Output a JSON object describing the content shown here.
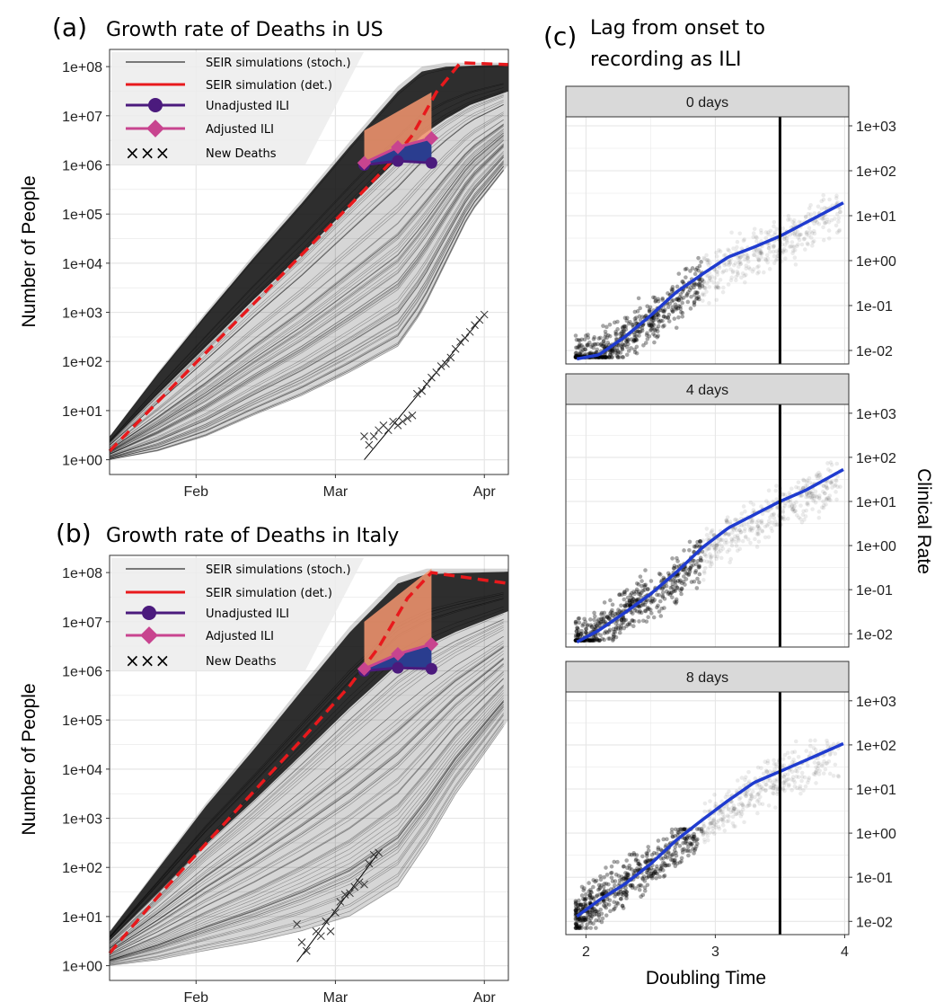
{
  "colors": {
    "det_curve": "#e8191c",
    "stoch_curve": "#000000",
    "unadjusted": "#4b1a7d",
    "adjusted": "#c8448f",
    "orange_fill": "#f4956e",
    "blue_fill": "#2a3d8f",
    "smooth_line": "#1f3bcf",
    "panel_bg": "#ffffff",
    "grid": "#e6e6e6",
    "strip_bg": "#d9d9d9"
  },
  "chart_data": [
    {
      "type": "line",
      "panel_label": "(a)",
      "title": "Growth rate of Deaths in US",
      "xlabel": "",
      "ylabel": "Number of People",
      "y_scale": "log10",
      "ylim": [
        "1e+00",
        "1e+08"
      ],
      "ytick_labels": [
        "1e+00",
        "1e+01",
        "1e+02",
        "1e+03",
        "1e+04",
        "1e+05",
        "1e+06",
        "1e+07",
        "1e+08"
      ],
      "xtick_labels": [
        "Feb",
        "Mar",
        "Apr"
      ],
      "xtick_dates": [
        "2020-02-01",
        "2020-03-01",
        "2020-04-01"
      ],
      "xlim": [
        "2020-01-14",
        "2020-04-06"
      ],
      "legend": {
        "position": "top-left",
        "entries": [
          {
            "label": "SEIR simulations (stoch.)",
            "style": "thin-black-line"
          },
          {
            "label": "SEIR simulation (det.)",
            "style": "red-line"
          },
          {
            "label": "Unadjusted ILI",
            "style": "purple-circle"
          },
          {
            "label": "Adjusted ILI",
            "style": "magenta-diamond"
          },
          {
            "label": "New Deaths",
            "style": "crosses"
          }
        ]
      },
      "series": [
        {
          "name": "SEIR simulation (det.)",
          "x": [
            "2020-01-14",
            "2020-01-24",
            "2020-02-03",
            "2020-02-13",
            "2020-02-23",
            "2020-03-04",
            "2020-03-12",
            "2020-03-17",
            "2020-03-22",
            "2020-03-27",
            "2020-04-06"
          ],
          "y": [
            1.5,
            15,
            150,
            1500,
            15000,
            150000,
            1000000,
            4000000,
            30000000,
            120000000,
            110000000
          ]
        },
        {
          "name": "Unadjusted ILI",
          "x": [
            "2020-03-07",
            "2020-03-14",
            "2020-03-21"
          ],
          "y": [
            1000000,
            1200000,
            1100000
          ]
        },
        {
          "name": "Adjusted ILI",
          "x": [
            "2020-03-07",
            "2020-03-14",
            "2020-03-21"
          ],
          "y": [
            1100000,
            2300000,
            3500000
          ]
        },
        {
          "name": "New Deaths",
          "x": [
            "2020-02-29",
            "2020-03-07",
            "2020-03-08",
            "2020-03-09",
            "2020-03-10",
            "2020-03-11",
            "2020-03-12",
            "2020-03-13",
            "2020-03-14",
            "2020-03-15",
            "2020-03-16",
            "2020-03-17",
            "2020-03-18",
            "2020-03-19",
            "2020-03-20",
            "2020-03-21",
            "2020-03-22",
            "2020-03-23",
            "2020-03-24",
            "2020-03-25",
            "2020-03-26",
            "2020-03-27",
            "2020-03-28",
            "2020-03-29",
            "2020-03-30",
            "2020-03-31",
            "2020-04-01"
          ],
          "y": [
            0.4,
            3,
            2,
            3,
            4,
            5,
            4,
            6,
            5,
            6,
            7,
            8,
            22,
            25,
            35,
            47,
            60,
            80,
            90,
            120,
            180,
            250,
            300,
            400,
            550,
            700,
            900
          ]
        },
        {
          "name": "deaths_fit",
          "x": [
            "2020-03-07",
            "2020-04-01"
          ],
          "y": [
            1,
            900
          ]
        }
      ],
      "orange_band": {
        "x": [
          "2020-03-07",
          "2020-03-21"
        ],
        "upper": [
          5000000,
          30000000
        ],
        "lower": [
          1100000,
          3500000
        ]
      },
      "stoch_envelope": {
        "x": [
          "2020-01-14",
          "2020-01-24",
          "2020-02-03",
          "2020-02-13",
          "2020-02-23",
          "2020-03-04",
          "2020-03-14",
          "2020-03-19",
          "2020-03-24",
          "2020-03-29",
          "2020-04-06"
        ],
        "upper": [
          3,
          60,
          1000,
          15000,
          200000,
          3000000,
          40000000,
          100000000,
          120000000,
          120000000,
          120000000
        ],
        "lower": [
          1,
          1.5,
          3,
          8,
          20,
          60,
          200,
          1000,
          10000,
          100000,
          1000000
        ]
      }
    },
    {
      "type": "line",
      "panel_label": "(b)",
      "title": "Growth rate of Deaths in Italy",
      "xlabel": "",
      "ylabel": "Number of People",
      "y_scale": "log10",
      "ylim": [
        "1e+00",
        "1e+08"
      ],
      "ytick_labels": [
        "1e+00",
        "1e+01",
        "1e+02",
        "1e+03",
        "1e+04",
        "1e+05",
        "1e+06",
        "1e+07",
        "1e+08"
      ],
      "xtick_labels": [
        "Feb",
        "Mar",
        "Apr"
      ],
      "xtick_dates": [
        "2020-02-01",
        "2020-03-01",
        "2020-04-01"
      ],
      "xlim": [
        "2020-01-14",
        "2020-04-06"
      ],
      "legend": {
        "position": "top-left",
        "entries": [
          {
            "label": "SEIR simulations (stoch.)",
            "style": "thin-black-line"
          },
          {
            "label": "SEIR simulation (det.)",
            "style": "red-line"
          },
          {
            "label": "Unadjusted ILI",
            "style": "purple-circle"
          },
          {
            "label": "Adjusted ILI",
            "style": "magenta-diamond"
          },
          {
            "label": "New Deaths",
            "style": "crosses"
          }
        ]
      },
      "series": [
        {
          "name": "SEIR simulation (det.)",
          "x": [
            "2020-01-14",
            "2020-01-24",
            "2020-02-03",
            "2020-02-13",
            "2020-02-23",
            "2020-03-04",
            "2020-03-10",
            "2020-03-16",
            "2020-03-21",
            "2020-04-06"
          ],
          "y": [
            1.8,
            25,
            300,
            3500,
            40000,
            500000,
            3000000,
            30000000,
            100000000,
            60000000
          ]
        },
        {
          "name": "Unadjusted ILI",
          "x": [
            "2020-03-07",
            "2020-03-14",
            "2020-03-21"
          ],
          "y": [
            1000000,
            1150000,
            1100000
          ]
        },
        {
          "name": "Adjusted ILI",
          "x": [
            "2020-03-07",
            "2020-03-14",
            "2020-03-21"
          ],
          "y": [
            1100000,
            2200000,
            3500000
          ]
        },
        {
          "name": "New Deaths",
          "x": [
            "2020-02-22",
            "2020-02-23",
            "2020-02-24",
            "2020-02-26",
            "2020-02-27",
            "2020-02-28",
            "2020-02-29",
            "2020-03-01",
            "2020-03-02",
            "2020-03-03",
            "2020-03-04",
            "2020-03-05",
            "2020-03-06",
            "2020-03-07",
            "2020-03-08",
            "2020-03-09",
            "2020-03-10"
          ],
          "y": [
            7,
            3,
            2,
            5,
            4,
            8,
            5,
            12,
            20,
            28,
            30,
            40,
            50,
            45,
            120,
            180,
            200
          ]
        },
        {
          "name": "deaths_fit",
          "x": [
            "2020-02-22",
            "2020-03-10"
          ],
          "y": [
            1.2,
            200
          ]
        }
      ],
      "orange_band": {
        "x": [
          "2020-03-07",
          "2020-03-21"
        ],
        "upper": [
          10000000,
          120000000
        ],
        "lower": [
          1100000,
          3500000
        ]
      },
      "stoch_envelope": {
        "x": [
          "2020-01-14",
          "2020-01-24",
          "2020-02-03",
          "2020-02-13",
          "2020-02-23",
          "2020-03-04",
          "2020-03-14",
          "2020-03-20",
          "2020-03-26",
          "2020-04-06"
        ],
        "upper": [
          5,
          100,
          2000,
          30000,
          500000,
          8000000,
          80000000,
          120000000,
          120000000,
          120000000
        ],
        "lower": [
          1,
          1.3,
          2,
          3,
          5,
          10,
          40,
          300,
          3000,
          100000
        ]
      }
    },
    {
      "type": "scatter",
      "panel_label": "(c)",
      "title": "Lag from onset to recording as ILI",
      "xlabel": "Doubling Time",
      "ylabel": "Clinical Rate",
      "y_scale": "log10",
      "xlim": [
        1.9,
        4.0
      ],
      "xticks": [
        2,
        3,
        4
      ],
      "ytick_labels": [
        "1e-02",
        "1e-01",
        "1e+00",
        "1e+01",
        "1e+02",
        "1e+03"
      ],
      "vline_x": 3.5,
      "facets": [
        {
          "label": "0 days",
          "smooth": {
            "x": [
              1.93,
              2.1,
              2.3,
              2.5,
              2.7,
              2.9,
              3.1,
              3.3,
              3.5,
              3.7,
              4.0
            ],
            "y": [
              0.0065,
              0.008,
              0.02,
              0.06,
              0.2,
              0.5,
              1.2,
              2.0,
              3.5,
              7.0,
              20
            ]
          }
        },
        {
          "label": "4 days",
          "smooth": {
            "x": [
              1.93,
              2.1,
              2.3,
              2.5,
              2.7,
              2.9,
              3.1,
              3.3,
              3.5,
              3.7,
              4.0
            ],
            "y": [
              0.0065,
              0.012,
              0.03,
              0.08,
              0.25,
              0.9,
              2.5,
              5.0,
              10,
              18,
              55
            ]
          }
        },
        {
          "label": "8 days",
          "smooth": {
            "x": [
              1.93,
              2.1,
              2.3,
              2.5,
              2.7,
              2.9,
              3.1,
              3.3,
              3.5,
              3.7,
              4.0
            ],
            "y": [
              0.013,
              0.03,
              0.07,
              0.2,
              0.7,
              2.0,
              5.5,
              14,
              25,
              45,
              110
            ]
          }
        }
      ]
    }
  ]
}
